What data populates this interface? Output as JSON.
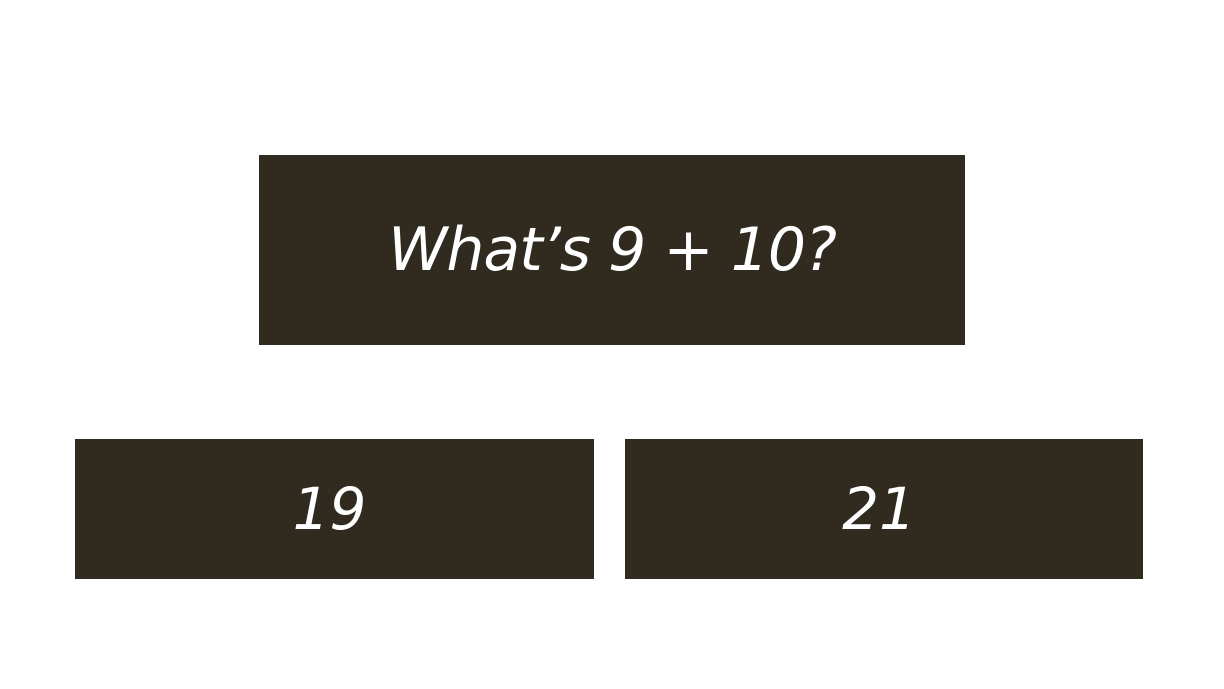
{
  "quiz": {
    "question": "What’s 9 + 10?",
    "answers": [
      {
        "label": "19"
      },
      {
        "label": "21"
      }
    ]
  },
  "colors": {
    "background": "#ffffff",
    "box": "#312a1f",
    "text": "#ffffff"
  }
}
